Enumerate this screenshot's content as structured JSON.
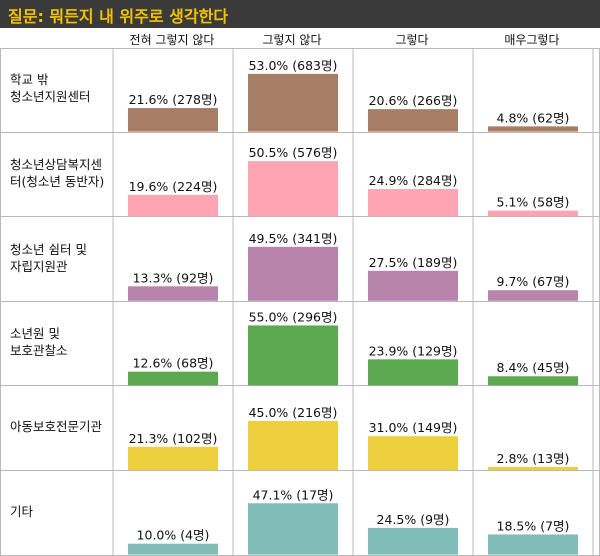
{
  "title": "질문: 뭐든지 내 위주로 생각한다",
  "columns": [
    "전혀 그렇지 않다",
    "그렇지 않다",
    "그렇다",
    "매우그렇다"
  ],
  "chart_data": {
    "type": "bar",
    "title": "질문: 뭐든지 내 위주로 생각한다",
    "categories": [
      "전혀 그렇지 않다",
      "그렇지 않다",
      "그렇다",
      "매우그렇다"
    ],
    "unit": "%",
    "rows": [
      {
        "label_lines": [
          "학교 밖",
          "청소년지원센터"
        ],
        "color": "#a67e66",
        "values": [
          21.6,
          53.0,
          20.6,
          4.8
        ],
        "labels": [
          "21.6% (278명)",
          "53.0% (683명)",
          "20.6% (266명)",
          "4.8% (62명)"
        ]
      },
      {
        "label_lines": [
          "청소년상담복지센",
          "터(청소년 동반자)"
        ],
        "color": "#ffa4b2",
        "values": [
          19.6,
          50.5,
          24.9,
          5.1
        ],
        "labels": [
          "19.6% (224명)",
          "50.5% (576명)",
          "24.9% (284명)",
          "5.1% (58명)"
        ]
      },
      {
        "label_lines": [
          "청소년 쉼터 및",
          "자립지원관"
        ],
        "color": "#b884ab",
        "values": [
          13.3,
          49.5,
          27.5,
          9.7
        ],
        "labels": [
          "13.3% (92명)",
          "49.5% (341명)",
          "27.5% (189명)",
          "9.7% (67명)"
        ]
      },
      {
        "label_lines": [
          "소년원 및",
          "보호관찰소"
        ],
        "color": "#5ba84f",
        "values": [
          12.6,
          55.0,
          23.9,
          8.4
        ],
        "labels": [
          "12.6% (68명)",
          "55.0% (296명)",
          "23.9% (129명)",
          "8.4% (45명)"
        ]
      },
      {
        "label_lines": [
          "아동보호전문기관"
        ],
        "color": "#eecf3e",
        "values": [
          21.3,
          45.0,
          31.0,
          2.8
        ],
        "labels": [
          "21.3% (102명)",
          "45.0% (216명)",
          "31.0% (149명)",
          "2.8% (13명)"
        ]
      },
      {
        "label_lines": [
          "기타"
        ],
        "color": "#80bdb9",
        "values": [
          10.0,
          47.1,
          24.5,
          18.5
        ],
        "labels": [
          "10.0% (4명)",
          "47.1% (17명)",
          "24.5% (9명)",
          "18.5% (7명)"
        ]
      }
    ]
  }
}
